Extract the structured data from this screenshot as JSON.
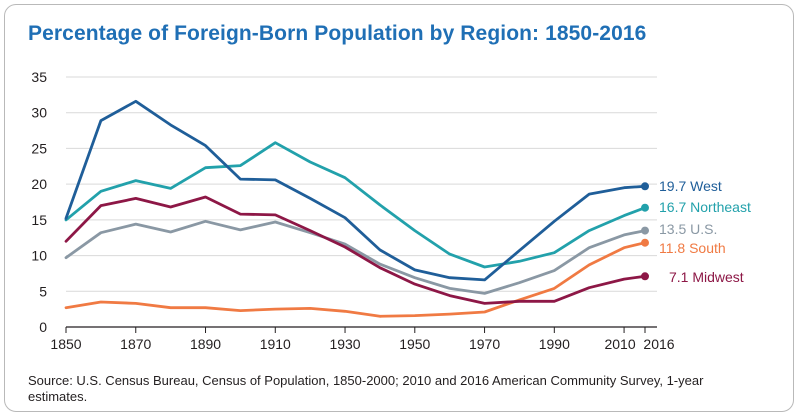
{
  "title": "Percentage of Foreign-Born Population by Region: 1850-2016",
  "source": "Source: U.S. Census Bureau, Census of Population, 1850-2000; 2010 and 2016 American Community Survey, 1-year estimates.",
  "colors": {
    "title": "#1f6fb5",
    "west": "#1f5e99",
    "northeast": "#22a1ab",
    "us": "#8a98a4",
    "south": "#f07a43",
    "midwest": "#8d1746",
    "axis": "#231f20",
    "grid": "#d9d9d9"
  },
  "chart_data": {
    "type": "line",
    "title": "Percentage of Foreign-Born Population by Region: 1850-2016",
    "xlabel": "",
    "ylabel": "",
    "x": [
      1850,
      1860,
      1870,
      1880,
      1890,
      1900,
      1910,
      1920,
      1930,
      1940,
      1950,
      1960,
      1970,
      1980,
      1990,
      2000,
      2010,
      2016
    ],
    "xticks": [
      "1850",
      "1870",
      "1890",
      "1910",
      "1930",
      "1950",
      "1970",
      "1990",
      "2010",
      "2016"
    ],
    "xtick_values": [
      1850,
      1870,
      1890,
      1910,
      1930,
      1950,
      1970,
      1990,
      2010,
      2016
    ],
    "yticks": [
      "0",
      "5",
      "10",
      "15",
      "20",
      "25",
      "30",
      "35"
    ],
    "ylim": [
      0,
      35
    ],
    "xlim": [
      1850,
      2016
    ],
    "grid": "horizontal",
    "series": [
      {
        "key": "us",
        "name": "U.S.",
        "label": "13.5 U.S.",
        "values": [
          9.7,
          13.2,
          14.4,
          13.3,
          14.8,
          13.6,
          14.7,
          13.2,
          11.6,
          8.8,
          6.9,
          5.4,
          4.7,
          6.2,
          7.9,
          11.1,
          12.9,
          13.5
        ]
      },
      {
        "key": "south",
        "name": "South",
        "label": "11.8 South",
        "values": [
          2.7,
          3.5,
          3.3,
          2.7,
          2.7,
          2.3,
          2.5,
          2.6,
          2.2,
          1.5,
          1.6,
          1.8,
          2.1,
          3.8,
          5.4,
          8.7,
          11.1,
          11.8
        ]
      },
      {
        "key": "midwest",
        "name": "Midwest",
        "label": "7.1 Midwest",
        "values": [
          12.0,
          17.0,
          18.0,
          16.8,
          18.2,
          15.8,
          15.7,
          13.5,
          11.2,
          8.3,
          6.0,
          4.4,
          3.3,
          3.6,
          3.6,
          5.5,
          6.7,
          7.1
        ]
      },
      {
        "key": "northeast",
        "name": "Northeast",
        "label": "16.7 Northeast",
        "values": [
          15.0,
          19.0,
          20.5,
          19.4,
          22.3,
          22.6,
          25.8,
          23.1,
          20.9,
          17.1,
          13.5,
          10.2,
          8.4,
          9.2,
          10.4,
          13.5,
          15.6,
          16.7
        ]
      },
      {
        "key": "west",
        "name": "West",
        "label": "19.7 West",
        "values": [
          15.2,
          28.9,
          31.6,
          28.3,
          25.4,
          20.7,
          20.6,
          18.0,
          15.3,
          10.8,
          8.0,
          6.9,
          6.6,
          10.7,
          14.8,
          18.6,
          19.5,
          19.7
        ]
      }
    ]
  }
}
